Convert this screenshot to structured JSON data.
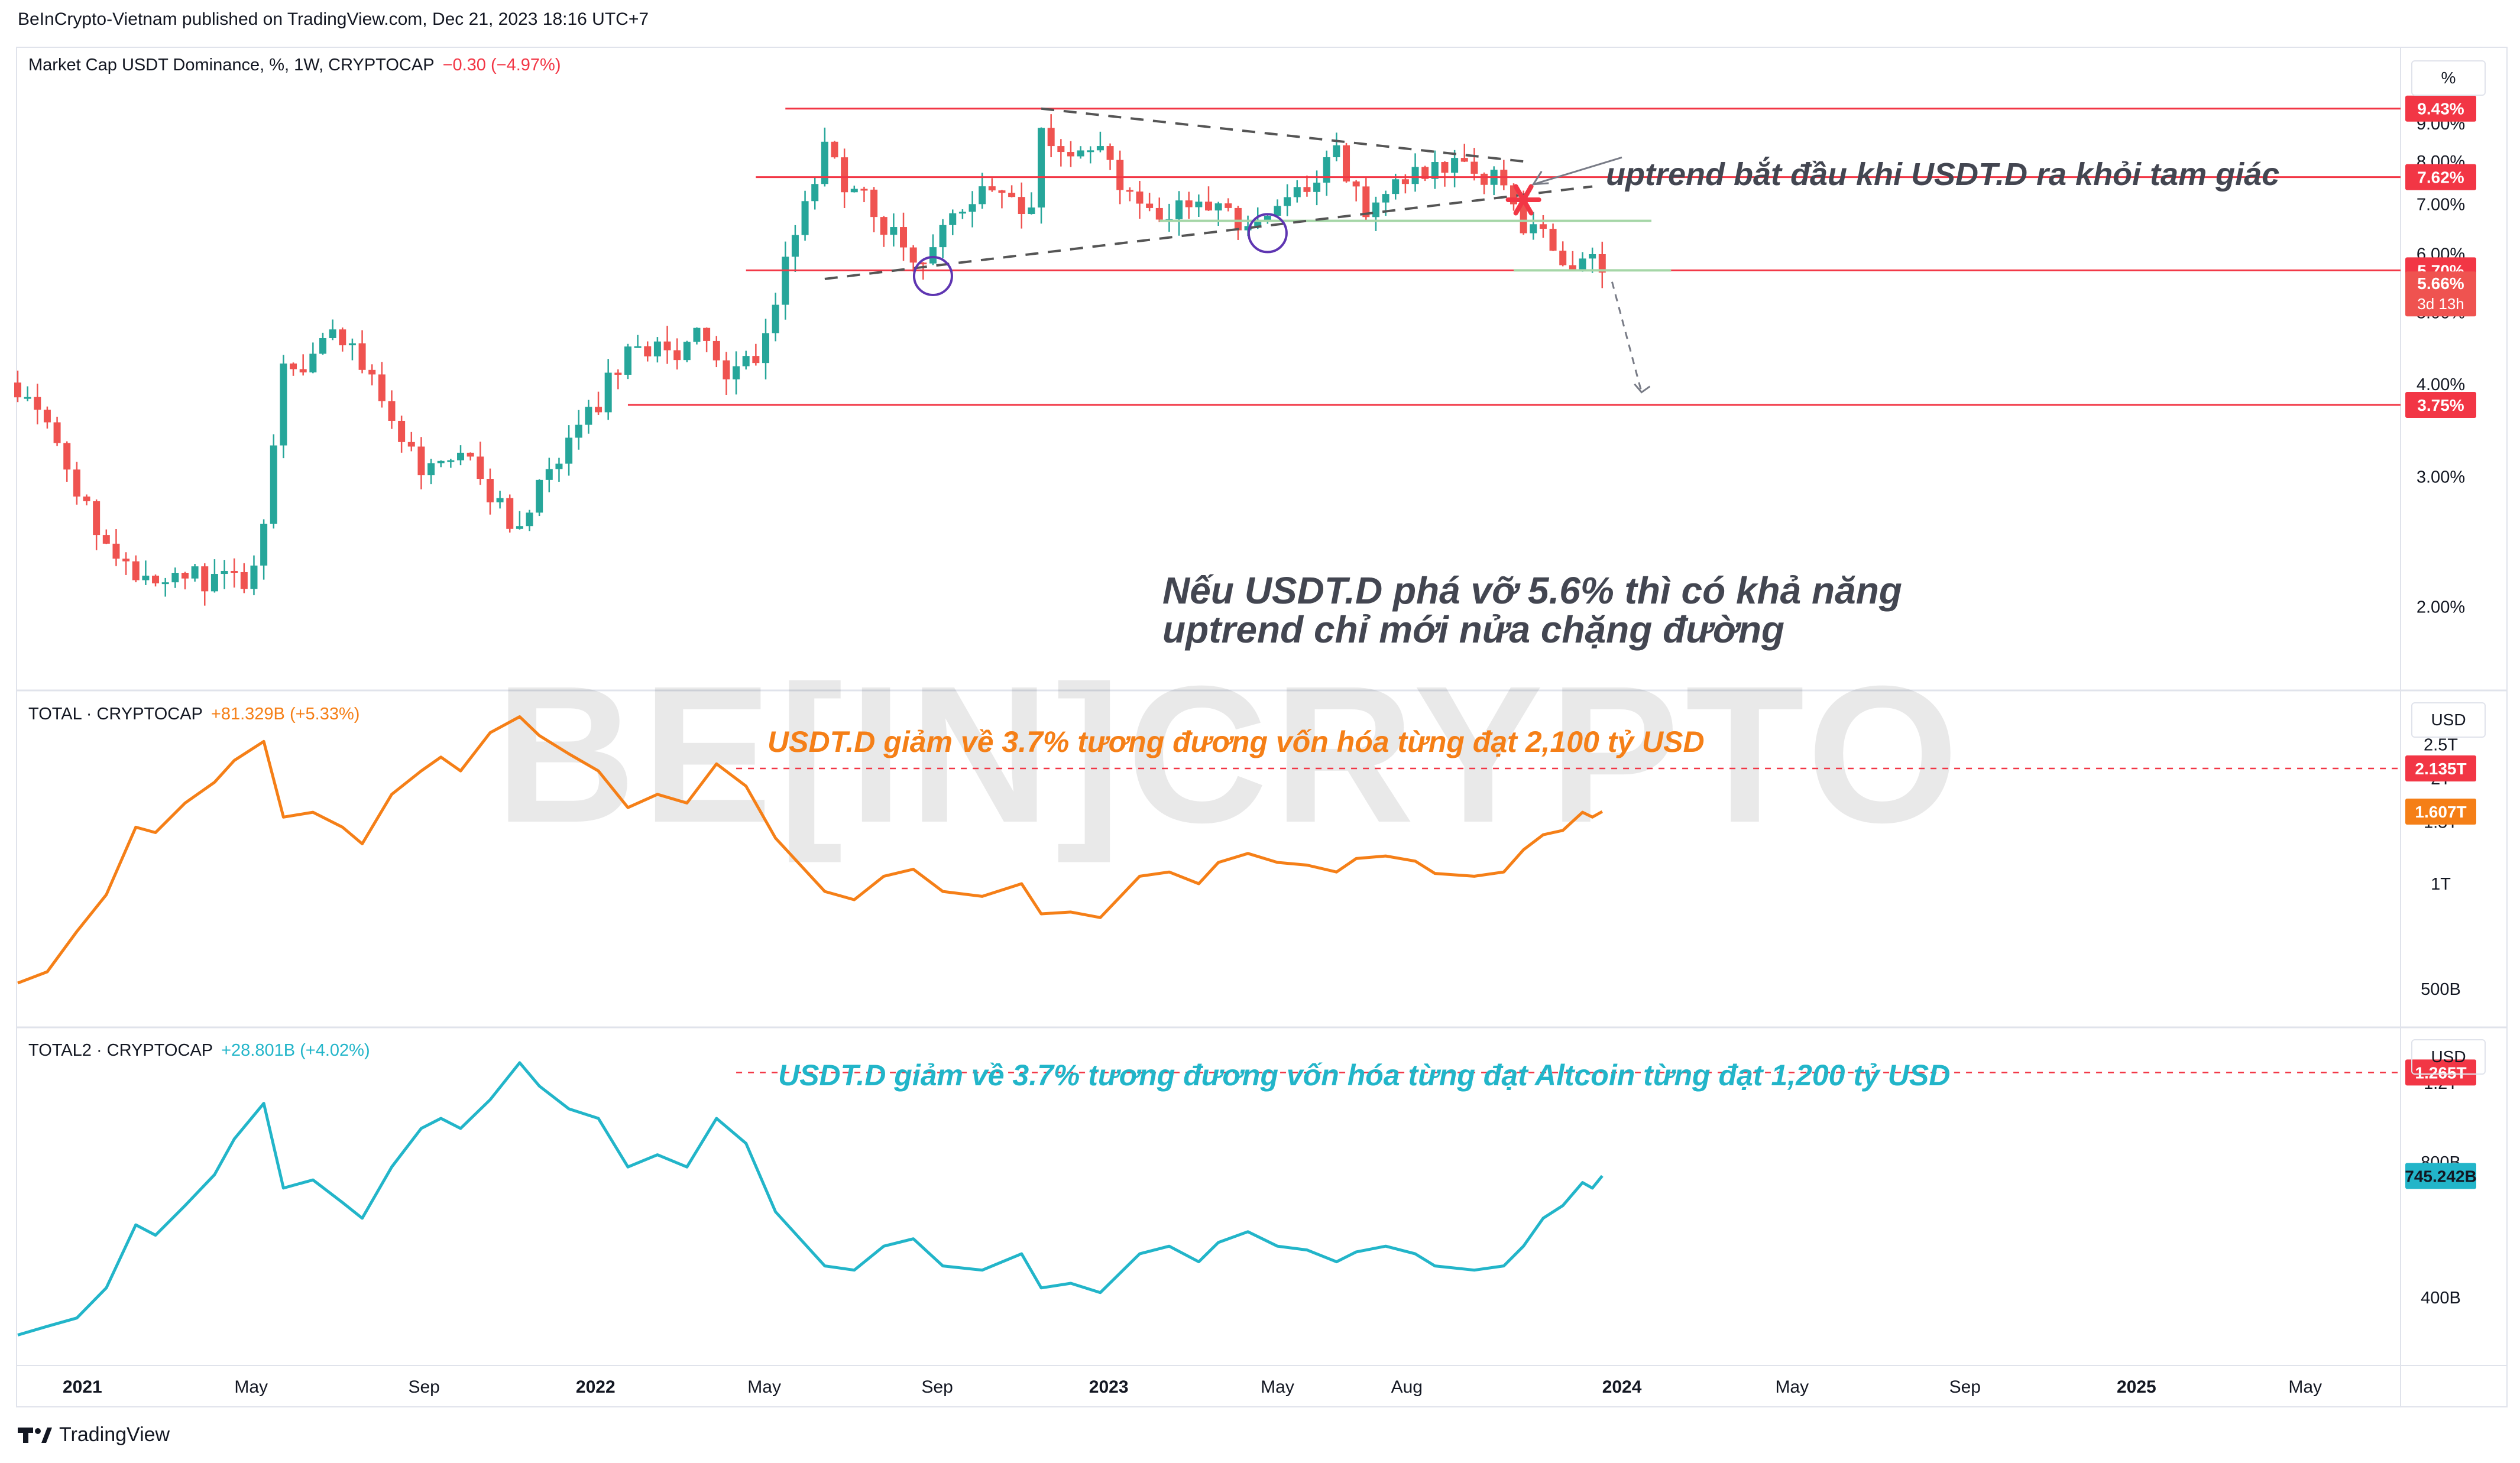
{
  "header": {
    "publisher_line": "BeInCrypto-Vietnam published on TradingView.com, Dec 21, 2023 18:16 UTC+7"
  },
  "footer": {
    "brand": "TradingView"
  },
  "watermark": "BE[IN]CRYPTO",
  "colors": {
    "candle_up": "#26a69a",
    "candle_down": "#ef5350",
    "level_line": "#f23645",
    "total_line": "#f57f17",
    "total2_line": "#22b5c9",
    "support_line": "#a5d6a7",
    "triangle_line": "#555555",
    "circle": "#5e35b1",
    "annot_dark": "#434651"
  },
  "panels": {
    "main": {
      "title": "Market Cap USDT Dominance, %, 1W, CRYPTOCAP",
      "change": "−0.30 (−4.97%)",
      "unit_button": "%"
    },
    "total": {
      "title": "TOTAL · CRYPTOCAP",
      "change": "+81.329B (+5.33%)",
      "unit_button": "USD"
    },
    "total2": {
      "title": "TOTAL2 · CRYPTOCAP",
      "change": "+28.801B (+4.02%)",
      "unit_button": "USD"
    }
  },
  "annotations": {
    "uptrend": "uptrend bắt đầu khi USDT.D ra khỏi tam giác",
    "break_line1": "Nếu USDT.D phá vỡ 5.6% thì có khả năng",
    "break_line2": "uptrend chỉ mới nửa chặng đường",
    "total_note": "USDT.D giảm về 3.7% tương đương vốn hóa từng đạt 2,100 tỷ USD",
    "total2_note": "USDT.D giảm về 3.7% tương đương vốn hóa từng đạt Altcoin từng đạt 1,200 tỷ USD"
  },
  "chart_data": [
    {
      "type": "candlestick",
      "title": "Market Cap USDT Dominance, %, 1W, CRYPTOCAP",
      "interval": "1W",
      "y_unit": "%",
      "y_scale": "log",
      "ylim": [
        1.6,
        11.0
      ],
      "y_ticks": [
        "9.00%",
        "8.00%",
        "7.00%",
        "6.00%",
        "5.00%",
        "4.00%",
        "3.00%",
        "2.00%"
      ],
      "y_tick_values": [
        9,
        8,
        7,
        6,
        5,
        4,
        3,
        2
      ],
      "x_range": [
        "2020-11-16",
        "2025-07-07"
      ],
      "x_ticks": [
        "2021",
        "May",
        "Sep",
        "2022",
        "May",
        "Sep",
        "2023",
        "May",
        "Aug",
        "2024",
        "May",
        "Sep",
        "2025",
        "May"
      ],
      "x_tick_dates": [
        "2021-01-01",
        "2021-05-01",
        "2021-09-01",
        "2022-01-01",
        "2022-05-01",
        "2022-09-01",
        "2023-01-01",
        "2023-05-01",
        "2023-08-01",
        "2024-01-01",
        "2024-05-01",
        "2024-09-01",
        "2025-01-01",
        "2025-05-01"
      ],
      "close_path": [
        [
          "2020-11-16",
          4.02
        ],
        [
          "2020-12-07",
          3.5
        ],
        [
          "2020-12-28",
          2.9
        ],
        [
          "2021-01-18",
          2.45
        ],
        [
          "2021-02-08",
          2.2
        ],
        [
          "2021-03-01",
          2.25
        ],
        [
          "2021-03-22",
          2.2
        ],
        [
          "2021-04-12",
          2.15
        ],
        [
          "2021-05-03",
          2.2
        ],
        [
          "2021-05-17",
          3.2
        ],
        [
          "2021-05-24",
          4.4
        ],
        [
          "2021-06-07",
          4.2
        ],
        [
          "2021-06-21",
          4.5
        ],
        [
          "2021-07-05",
          4.6
        ],
        [
          "2021-07-26",
          4.0
        ],
        [
          "2021-08-16",
          3.3
        ],
        [
          "2021-09-06",
          3.0
        ],
        [
          "2021-09-27",
          3.2
        ],
        [
          "2021-10-18",
          2.8
        ],
        [
          "2021-11-08",
          2.6
        ],
        [
          "2021-11-29",
          3.0
        ],
        [
          "2021-12-20",
          3.4
        ],
        [
          "2022-01-10",
          4.0
        ],
        [
          "2022-01-31",
          4.5
        ],
        [
          "2022-02-21",
          4.4
        ],
        [
          "2022-03-14",
          4.6
        ],
        [
          "2022-04-04",
          4.0
        ],
        [
          "2022-04-25",
          4.3
        ],
        [
          "2022-05-09",
          5.2
        ],
        [
          "2022-05-23",
          6.5
        ],
        [
          "2022-06-13",
          8.2
        ],
        [
          "2022-06-27",
          7.6
        ],
        [
          "2022-07-18",
          6.8
        ],
        [
          "2022-08-08",
          6.2
        ],
        [
          "2022-08-22",
          5.9
        ],
        [
          "2022-09-12",
          6.8
        ],
        [
          "2022-10-03",
          7.3
        ],
        [
          "2022-10-24",
          7.2
        ],
        [
          "2022-11-07",
          7.0
        ],
        [
          "2022-11-14",
          8.7
        ],
        [
          "2022-12-05",
          8.5
        ],
        [
          "2022-12-26",
          8.7
        ],
        [
          "2023-01-09",
          7.6
        ],
        [
          "2023-01-23",
          6.8
        ],
        [
          "2023-02-13",
          6.9
        ],
        [
          "2023-03-06",
          7.1
        ],
        [
          "2023-03-20",
          6.8
        ],
        [
          "2023-04-10",
          6.5
        ],
        [
          "2023-05-01",
          6.9
        ],
        [
          "2023-05-22",
          7.2
        ],
        [
          "2023-06-12",
          8.1
        ],
        [
          "2023-07-03",
          7.0
        ],
        [
          "2023-07-24",
          7.3
        ],
        [
          "2023-08-14",
          7.9
        ],
        [
          "2023-09-04",
          8.0
        ],
        [
          "2023-09-25",
          7.6
        ],
        [
          "2023-10-09",
          7.4
        ],
        [
          "2023-10-23",
          6.6
        ],
        [
          "2023-11-06",
          6.3
        ],
        [
          "2023-11-27",
          5.9
        ],
        [
          "2023-12-18",
          5.66
        ]
      ],
      "last_value": 5.66,
      "last_label": "5.66%",
      "countdown": "3d 13h",
      "levels": [
        {
          "value": 9.43,
          "label": "9.43%",
          "from": "2022-05-16"
        },
        {
          "value": 7.62,
          "label": "7.62%",
          "from": "2022-04-25"
        },
        {
          "value": 5.7,
          "label": "5.70%",
          "from": "2022-04-18"
        },
        {
          "value": 3.75,
          "label": "3.75%",
          "from": "2022-01-24"
        }
      ],
      "support_lines": [
        {
          "value": 6.65,
          "from": "2023-02-06",
          "to": "2024-01-22"
        },
        {
          "value": 5.7,
          "from": "2023-10-16",
          "to": "2024-02-05"
        }
      ],
      "triangle": {
        "upper": [
          [
            "2022-11-14",
            9.43
          ],
          [
            "2023-10-23",
            8.0
          ]
        ],
        "lower": [
          [
            "2022-06-13",
            5.55
          ],
          [
            "2023-12-11",
            7.4
          ]
        ]
      },
      "circles": [
        [
          "2022-08-29",
          5.6
        ],
        [
          "2023-04-24",
          6.4
        ]
      ],
      "breakout_marker": [
        "2023-10-23",
        7.1
      ],
      "projection_arrow": [
        [
          "2023-12-25",
          5.5
        ],
        [
          "2024-01-15",
          3.9
        ]
      ],
      "pointer_arrow": [
        [
          "2024-01-01",
          8.1
        ],
        [
          "2023-10-30",
          7.45
        ]
      ]
    },
    {
      "type": "line",
      "title": "TOTAL · CRYPTOCAP",
      "y_unit": "USD",
      "y_scale": "log",
      "ylim": [
        420,
        3300
      ],
      "y_ticks": [
        "2.5T",
        "2T",
        "1.5T",
        "1T",
        "500B"
      ],
      "y_tick_values": [
        2500,
        2000,
        1500,
        1000,
        500
      ],
      "series": [
        {
          "values_billion": [
            [
              "2020-11-16",
              520
            ],
            [
              "2020-12-07",
              560
            ],
            [
              "2020-12-28",
              730
            ],
            [
              "2021-01-18",
              930
            ],
            [
              "2021-02-08",
              1450
            ],
            [
              "2021-02-22",
              1400
            ],
            [
              "2021-03-15",
              1700
            ],
            [
              "2021-04-05",
              1950
            ],
            [
              "2021-04-19",
              2250
            ],
            [
              "2021-05-10",
              2550
            ],
            [
              "2021-05-24",
              1550
            ],
            [
              "2021-06-14",
              1600
            ],
            [
              "2021-07-05",
              1450
            ],
            [
              "2021-07-19",
              1300
            ],
            [
              "2021-08-09",
              1800
            ],
            [
              "2021-08-30",
              2100
            ],
            [
              "2021-09-13",
              2300
            ],
            [
              "2021-09-27",
              2100
            ],
            [
              "2021-10-18",
              2700
            ],
            [
              "2021-11-08",
              3000
            ],
            [
              "2021-11-22",
              2650
            ],
            [
              "2021-12-13",
              2350
            ],
            [
              "2022-01-03",
              2100
            ],
            [
              "2022-01-24",
              1650
            ],
            [
              "2022-02-14",
              1800
            ],
            [
              "2022-03-07",
              1700
            ],
            [
              "2022-03-28",
              2200
            ],
            [
              "2022-04-18",
              1900
            ],
            [
              "2022-05-09",
              1350
            ],
            [
              "2022-06-13",
              950
            ],
            [
              "2022-07-04",
              900
            ],
            [
              "2022-07-25",
              1050
            ],
            [
              "2022-08-15",
              1100
            ],
            [
              "2022-09-05",
              950
            ],
            [
              "2022-10-03",
              920
            ],
            [
              "2022-10-31",
              1000
            ],
            [
              "2022-11-14",
              820
            ],
            [
              "2022-12-05",
              830
            ],
            [
              "2022-12-26",
              800
            ],
            [
              "2023-01-23",
              1050
            ],
            [
              "2023-02-13",
              1080
            ],
            [
              "2023-03-06",
              1000
            ],
            [
              "2023-03-20",
              1150
            ],
            [
              "2023-04-10",
              1220
            ],
            [
              "2023-05-01",
              1150
            ],
            [
              "2023-05-22",
              1130
            ],
            [
              "2023-06-12",
              1080
            ],
            [
              "2023-06-26",
              1180
            ],
            [
              "2023-07-17",
              1200
            ],
            [
              "2023-08-07",
              1160
            ],
            [
              "2023-08-21",
              1070
            ],
            [
              "2023-09-18",
              1050
            ],
            [
              "2023-10-09",
              1080
            ],
            [
              "2023-10-23",
              1250
            ],
            [
              "2023-11-06",
              1380
            ],
            [
              "2023-11-20",
              1420
            ],
            [
              "2023-12-04",
              1600
            ],
            [
              "2023-12-11",
              1550
            ],
            [
              "2023-12-18",
              1607
            ]
          ]
        }
      ],
      "levels": [
        {
          "value": 2135,
          "label": "2.135T",
          "from": "2022-04-11"
        }
      ],
      "last_label": "1.607T"
    },
    {
      "type": "line",
      "title": "TOTAL2 · CRYPTOCAP",
      "y_unit": "USD",
      "y_scale": "log",
      "ylim": [
        300,
        1500
      ],
      "y_ticks": [
        "1.2T",
        "800B",
        "400B"
      ],
      "y_tick_values": [
        1200,
        800,
        400
      ],
      "series": [
        {
          "values_billion": [
            [
              "2020-11-16",
              330
            ],
            [
              "2020-12-07",
              345
            ],
            [
              "2020-12-28",
              360
            ],
            [
              "2021-01-18",
              420
            ],
            [
              "2021-02-08",
              580
            ],
            [
              "2021-02-22",
              550
            ],
            [
              "2021-03-15",
              640
            ],
            [
              "2021-04-05",
              750
            ],
            [
              "2021-04-19",
              900
            ],
            [
              "2021-05-10",
              1080
            ],
            [
              "2021-05-24",
              700
            ],
            [
              "2021-06-14",
              730
            ],
            [
              "2021-07-05",
              650
            ],
            [
              "2021-07-19",
              600
            ],
            [
              "2021-08-09",
              780
            ],
            [
              "2021-08-30",
              950
            ],
            [
              "2021-09-13",
              1000
            ],
            [
              "2021-09-27",
              950
            ],
            [
              "2021-10-18",
              1100
            ],
            [
              "2021-11-08",
              1330
            ],
            [
              "2021-11-22",
              1180
            ],
            [
              "2021-12-13",
              1050
            ],
            [
              "2022-01-03",
              1000
            ],
            [
              "2022-01-24",
              780
            ],
            [
              "2022-02-14",
              830
            ],
            [
              "2022-03-07",
              780
            ],
            [
              "2022-03-28",
              1000
            ],
            [
              "2022-04-18",
              880
            ],
            [
              "2022-05-09",
              620
            ],
            [
              "2022-06-13",
              470
            ],
            [
              "2022-07-04",
              460
            ],
            [
              "2022-07-25",
              520
            ],
            [
              "2022-08-15",
              540
            ],
            [
              "2022-09-05",
              470
            ],
            [
              "2022-10-03",
              460
            ],
            [
              "2022-10-31",
              500
            ],
            [
              "2022-11-14",
              420
            ],
            [
              "2022-12-05",
              430
            ],
            [
              "2022-12-26",
              410
            ],
            [
              "2023-01-23",
              500
            ],
            [
              "2023-02-13",
              520
            ],
            [
              "2023-03-06",
              480
            ],
            [
              "2023-03-20",
              530
            ],
            [
              "2023-04-10",
              560
            ],
            [
              "2023-05-01",
              520
            ],
            [
              "2023-05-22",
              510
            ],
            [
              "2023-06-12",
              480
            ],
            [
              "2023-06-26",
              505
            ],
            [
              "2023-07-17",
              520
            ],
            [
              "2023-08-07",
              500
            ],
            [
              "2023-08-21",
              470
            ],
            [
              "2023-09-18",
              460
            ],
            [
              "2023-10-09",
              470
            ],
            [
              "2023-10-23",
              520
            ],
            [
              "2023-11-06",
              600
            ],
            [
              "2023-11-20",
              640
            ],
            [
              "2023-12-04",
              720
            ],
            [
              "2023-12-11",
              700
            ],
            [
              "2023-12-18",
              745
            ]
          ]
        }
      ],
      "levels": [
        {
          "value": 1265,
          "label": "1.265T",
          "from": "2022-04-11"
        }
      ],
      "last_label": "745.242B"
    }
  ]
}
